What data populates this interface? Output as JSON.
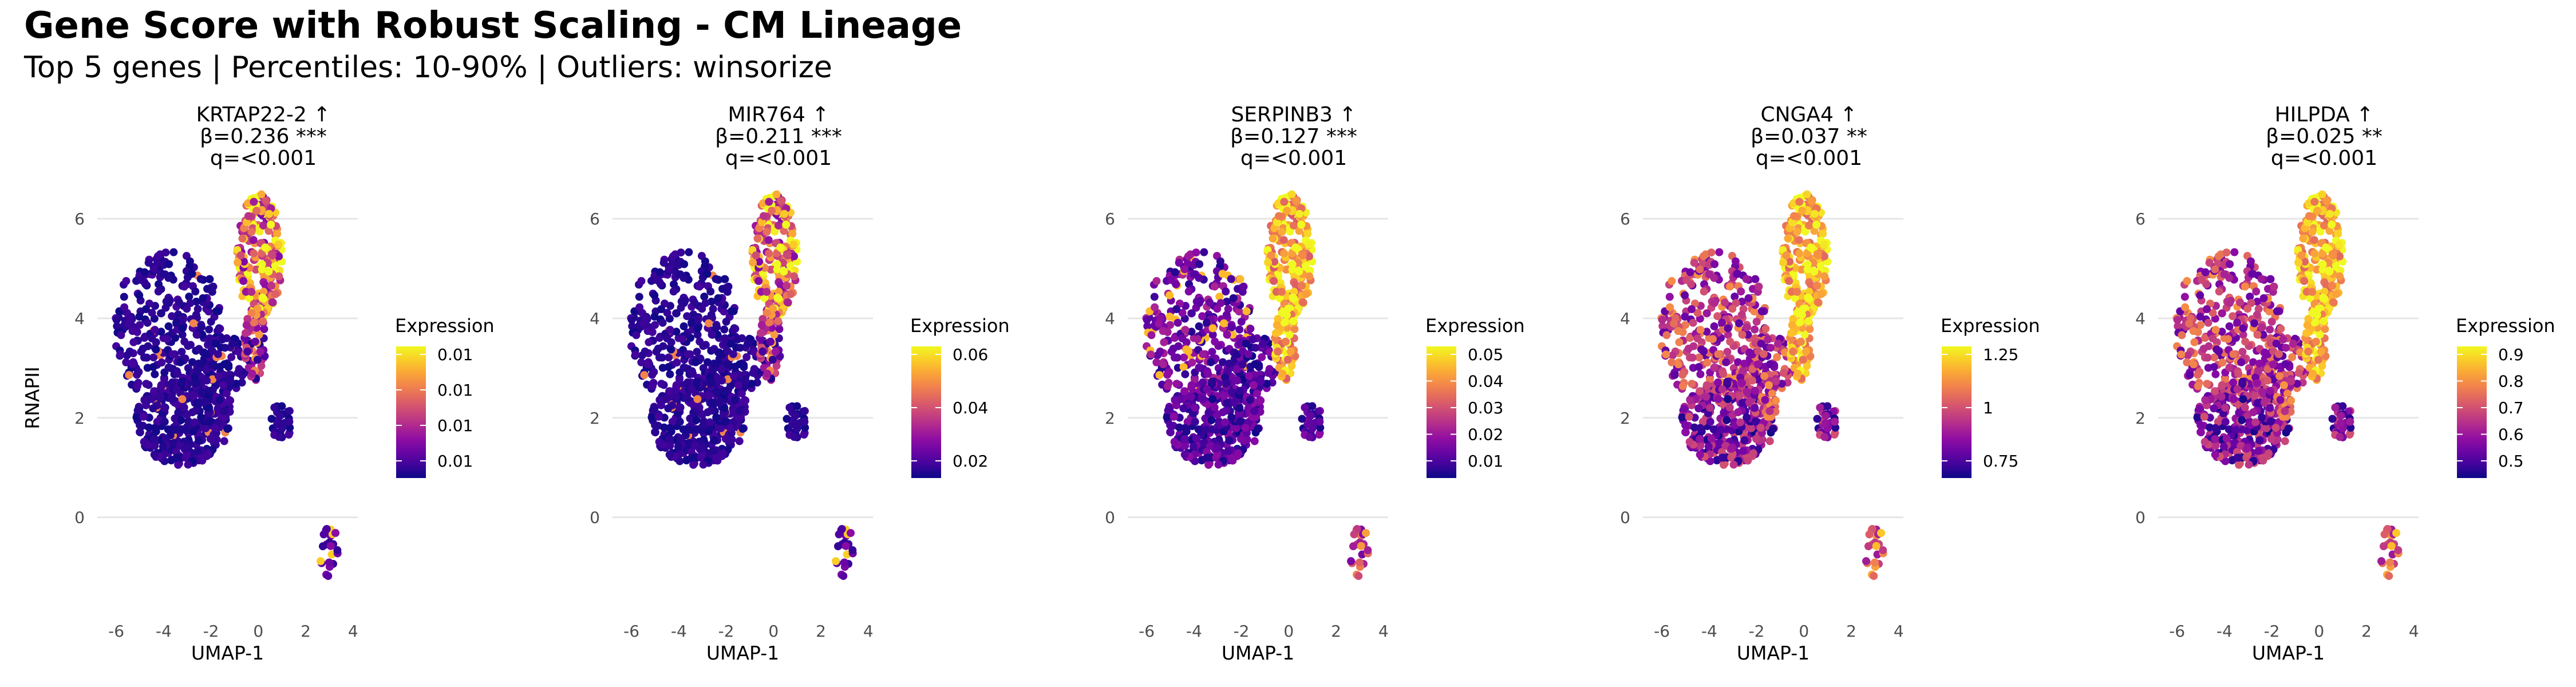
{
  "figure": {
    "title": "Gene Score with Robust Scaling - CM Lineage",
    "subtitle": "Top 5 genes | Percentiles: 10-90% | Outliers: winsorize"
  },
  "chart_data": [
    {
      "type": "scatter",
      "title_lines": [
        "KRTAP22-2 ↑",
        "β=0.236 ***",
        "q=<0.001"
      ],
      "xlabel": "UMAP-1",
      "ylabel": "RNAPII",
      "xlim": [
        -6.8,
        4.2
      ],
      "ylim": [
        -1.8,
        6.6
      ],
      "x_ticks": [
        -6,
        -4,
        -2,
        0,
        2,
        4
      ],
      "y_ticks": [
        0,
        2,
        4,
        6
      ],
      "grid": "horizontal",
      "colormap": "plasma",
      "pattern": "top",
      "legend": {
        "title": "Expression",
        "placement": "right",
        "ticks": [
          "0.01",
          "0.01",
          "0.01",
          "0.01"
        ]
      }
    },
    {
      "type": "scatter",
      "title_lines": [
        "MIR764 ↑",
        "β=0.211 ***",
        "q=<0.001"
      ],
      "xlabel": "UMAP-1",
      "ylabel": "",
      "xlim": [
        -6.8,
        4.2
      ],
      "ylim": [
        -1.8,
        6.6
      ],
      "x_ticks": [
        -6,
        -4,
        -2,
        0,
        2,
        4
      ],
      "y_ticks": [
        0,
        2,
        4,
        6
      ],
      "grid": "horizontal",
      "colormap": "plasma",
      "pattern": "top",
      "legend": {
        "title": "Expression",
        "placement": "right",
        "ticks": [
          "0.06",
          "0.04",
          "0.02"
        ]
      }
    },
    {
      "type": "scatter",
      "title_lines": [
        "SERPINB3 ↑",
        "β=0.127 ***",
        "q=<0.001"
      ],
      "xlabel": "UMAP-1",
      "ylabel": "",
      "xlim": [
        -6.8,
        4.2
      ],
      "ylim": [
        -1.8,
        6.6
      ],
      "x_ticks": [
        -6,
        -4,
        -2,
        0,
        2,
        4
      ],
      "y_ticks": [
        0,
        2,
        4,
        6
      ],
      "grid": "horizontal",
      "colormap": "plasma",
      "pattern": "strong",
      "legend": {
        "title": "Expression",
        "placement": "right",
        "ticks": [
          "0.05",
          "0.04",
          "0.03",
          "0.02",
          "0.01"
        ]
      }
    },
    {
      "type": "scatter",
      "title_lines": [
        "CNGA4 ↑",
        "β=0.037 **",
        "q=<0.001"
      ],
      "xlabel": "UMAP-1",
      "ylabel": "",
      "xlim": [
        -6.8,
        4.2
      ],
      "ylim": [
        -1.8,
        6.6
      ],
      "x_ticks": [
        -6,
        -4,
        -2,
        0,
        2,
        4
      ],
      "y_ticks": [
        0,
        2,
        4,
        6
      ],
      "grid": "horizontal",
      "colormap": "plasma",
      "pattern": "broad",
      "legend": {
        "title": "Expression",
        "placement": "right",
        "ticks": [
          "1.25",
          "1",
          "0.75"
        ]
      }
    },
    {
      "type": "scatter",
      "title_lines": [
        "HILPDA ↑",
        "β=0.025 **",
        "q=<0.001"
      ],
      "xlabel": "UMAP-1",
      "ylabel": "",
      "xlim": [
        -6.8,
        4.2
      ],
      "ylim": [
        -1.8,
        6.6
      ],
      "x_ticks": [
        -6,
        -4,
        -2,
        0,
        2,
        4
      ],
      "y_ticks": [
        0,
        2,
        4,
        6
      ],
      "grid": "horizontal",
      "colormap": "plasma",
      "pattern": "broad",
      "legend": {
        "title": "Expression",
        "placement": "right",
        "ticks": [
          "0.9",
          "0.8",
          "0.7",
          "0.6",
          "0.5"
        ]
      }
    }
  ]
}
